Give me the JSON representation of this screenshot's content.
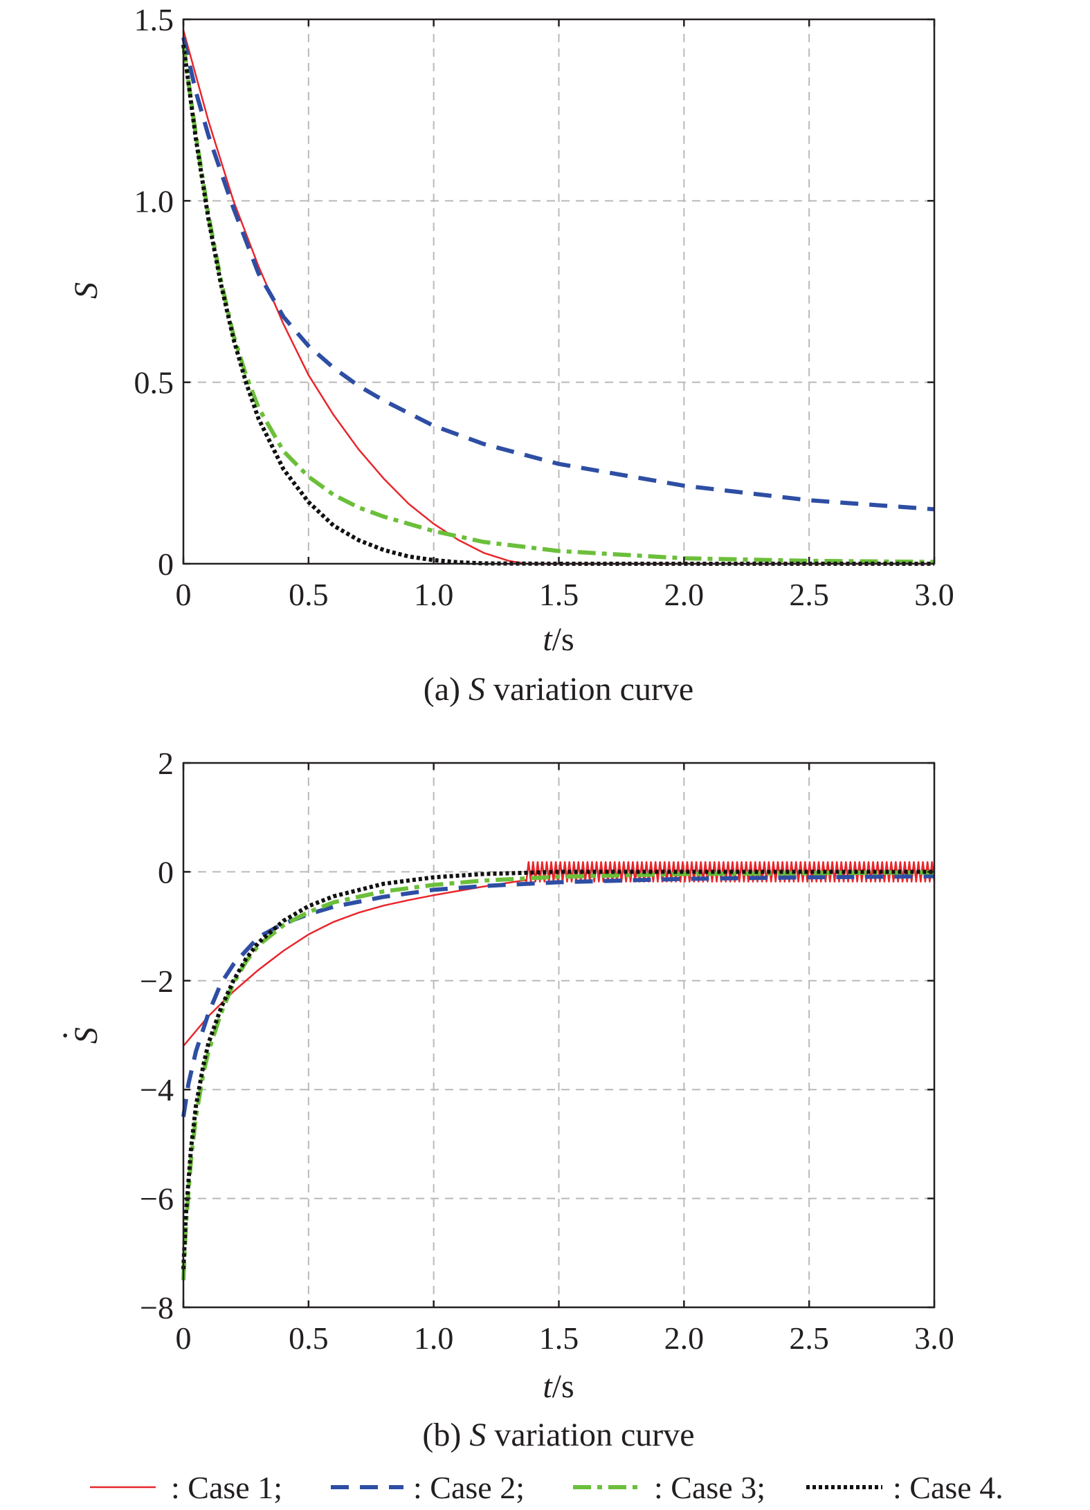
{
  "chart_data": [
    {
      "id": "a",
      "type": "line",
      "caption_prefix": "(a) ",
      "caption_symbol": "S",
      "caption_suffix": " variation curve",
      "ylabel": "S",
      "xlabel_italic": "t",
      "xlabel_unit": "/s",
      "xlim": [
        0,
        3.0
      ],
      "ylim": [
        0,
        1.5
      ],
      "xticks": [
        0,
        0.5,
        1.0,
        1.5,
        2.0,
        2.5,
        3.0
      ],
      "xtick_labels": [
        "0",
        "0.5",
        "1.0",
        "1.5",
        "2.0",
        "2.5",
        "3.0"
      ],
      "yticks": [
        0,
        0.5,
        1.0,
        1.5
      ],
      "ytick_labels": [
        "0",
        "0.5",
        "1.0",
        "1.5"
      ],
      "grid": true,
      "series": [
        {
          "name": "Case 1",
          "x": [
            0,
            0.1,
            0.2,
            0.3,
            0.4,
            0.5,
            0.6,
            0.7,
            0.8,
            0.9,
            1.0,
            1.1,
            1.2,
            1.3,
            1.37,
            1.5,
            2.0,
            2.5,
            3.0
          ],
          "y": [
            1.47,
            1.22,
            1.0,
            0.82,
            0.66,
            0.52,
            0.41,
            0.315,
            0.235,
            0.165,
            0.11,
            0.065,
            0.03,
            0.008,
            0.0,
            0.0,
            0.0,
            0.0,
            0.0
          ]
        },
        {
          "name": "Case 2",
          "x": [
            0,
            0.05,
            0.1,
            0.2,
            0.3,
            0.4,
            0.5,
            0.6,
            0.7,
            0.8,
            1.0,
            1.2,
            1.5,
            2.0,
            2.5,
            3.0
          ],
          "y": [
            1.45,
            1.3,
            1.18,
            0.98,
            0.8,
            0.68,
            0.6,
            0.54,
            0.49,
            0.45,
            0.38,
            0.33,
            0.275,
            0.215,
            0.175,
            0.15
          ]
        },
        {
          "name": "Case 3",
          "x": [
            0,
            0.05,
            0.1,
            0.15,
            0.2,
            0.25,
            0.3,
            0.4,
            0.5,
            0.6,
            0.7,
            0.8,
            1.0,
            1.2,
            1.5,
            2.0,
            2.5,
            3.0
          ],
          "y": [
            1.43,
            1.18,
            0.96,
            0.78,
            0.63,
            0.52,
            0.43,
            0.31,
            0.24,
            0.19,
            0.155,
            0.13,
            0.09,
            0.06,
            0.035,
            0.015,
            0.008,
            0.005
          ]
        },
        {
          "name": "Case 4",
          "x": [
            0,
            0.05,
            0.1,
            0.15,
            0.2,
            0.25,
            0.3,
            0.4,
            0.5,
            0.6,
            0.7,
            0.8,
            0.9,
            1.0,
            1.1,
            1.2,
            1.5,
            2.0,
            2.5,
            3.0
          ],
          "y": [
            1.43,
            1.17,
            0.95,
            0.77,
            0.62,
            0.5,
            0.4,
            0.26,
            0.17,
            0.105,
            0.065,
            0.038,
            0.02,
            0.01,
            0.004,
            0.001,
            0.0,
            0.0,
            0.0,
            0.0
          ]
        }
      ]
    },
    {
      "id": "b",
      "type": "line",
      "caption_prefix": "(b) ",
      "caption_symbol": "S",
      "caption_suffix": " variation curve",
      "ylabel": "S",
      "ylabel_dot": "·",
      "xlabel_italic": "t",
      "xlabel_unit": "/s",
      "xlim": [
        0,
        3.0
      ],
      "ylim": [
        -8,
        2
      ],
      "xticks": [
        0,
        0.5,
        1.0,
        1.5,
        2.0,
        2.5,
        3.0
      ],
      "xtick_labels": [
        "0",
        "0.5",
        "1.0",
        "1.5",
        "2.0",
        "2.5",
        "3.0"
      ],
      "yticks": [
        2,
        0,
        -2,
        -4,
        -6,
        -8
      ],
      "ytick_labels": [
        "2",
        "0",
        "−2",
        "−4",
        "−6",
        "−8"
      ],
      "grid": true,
      "series": [
        {
          "name": "Case 1",
          "x": [
            0,
            0.1,
            0.2,
            0.3,
            0.4,
            0.5,
            0.6,
            0.7,
            0.8,
            0.9,
            1.0,
            1.1,
            1.2,
            1.3,
            1.37
          ],
          "y": [
            -3.2,
            -2.65,
            -2.2,
            -1.8,
            -1.45,
            -1.15,
            -0.92,
            -0.75,
            -0.62,
            -0.52,
            -0.43,
            -0.35,
            -0.27,
            -0.2,
            -0.15
          ],
          "chatter": {
            "x_start": 1.37,
            "x_end": 3.0,
            "amplitude": 0.18,
            "cycles": 90
          }
        },
        {
          "name": "Case 2",
          "x": [
            0,
            0.02,
            0.05,
            0.1,
            0.15,
            0.2,
            0.3,
            0.4,
            0.5,
            0.6,
            0.8,
            1.0,
            1.2,
            1.5,
            2.0,
            2.5,
            3.0
          ],
          "y": [
            -4.5,
            -3.9,
            -3.3,
            -2.6,
            -2.05,
            -1.7,
            -1.2,
            -0.95,
            -0.78,
            -0.64,
            -0.46,
            -0.33,
            -0.26,
            -0.19,
            -0.13,
            -0.1,
            -0.08
          ]
        },
        {
          "name": "Case 3",
          "x": [
            0,
            0.01,
            0.03,
            0.05,
            0.08,
            0.1,
            0.15,
            0.2,
            0.25,
            0.3,
            0.4,
            0.5,
            0.6,
            0.8,
            1.0,
            1.2,
            1.5,
            2.0,
            3.0
          ],
          "y": [
            -7.5,
            -6.5,
            -5.3,
            -4.5,
            -3.7,
            -3.3,
            -2.6,
            -2.05,
            -1.65,
            -1.35,
            -0.98,
            -0.74,
            -0.56,
            -0.36,
            -0.24,
            -0.16,
            -0.09,
            -0.04,
            -0.01
          ]
        },
        {
          "name": "Case 4",
          "x": [
            0,
            0.01,
            0.03,
            0.05,
            0.08,
            0.1,
            0.15,
            0.2,
            0.25,
            0.3,
            0.4,
            0.5,
            0.6,
            0.8,
            1.0,
            1.2,
            1.5,
            2.0,
            3.0
          ],
          "y": [
            -7.3,
            -6.3,
            -5.1,
            -4.3,
            -3.55,
            -3.15,
            -2.5,
            -2.0,
            -1.6,
            -1.3,
            -0.9,
            -0.63,
            -0.45,
            -0.22,
            -0.1,
            -0.04,
            0.0,
            0.0,
            0.0
          ]
        }
      ]
    }
  ],
  "legend": {
    "entries": [
      {
        "label": ": Case 1;",
        "color": "#e8262b",
        "style": "solid"
      },
      {
        "label": ": Case 2;",
        "color": "#2e4ea4",
        "style": "dashed"
      },
      {
        "label": ": Case 3;",
        "color": "#6bbf3a",
        "style": "dashdot"
      },
      {
        "label": ": Case 4.",
        "color": "#111111",
        "style": "dotted"
      }
    ]
  },
  "colors": {
    "case1": "#e8262b",
    "case2": "#2e4ea4",
    "case3": "#6bbf3a",
    "case4": "#111111"
  }
}
